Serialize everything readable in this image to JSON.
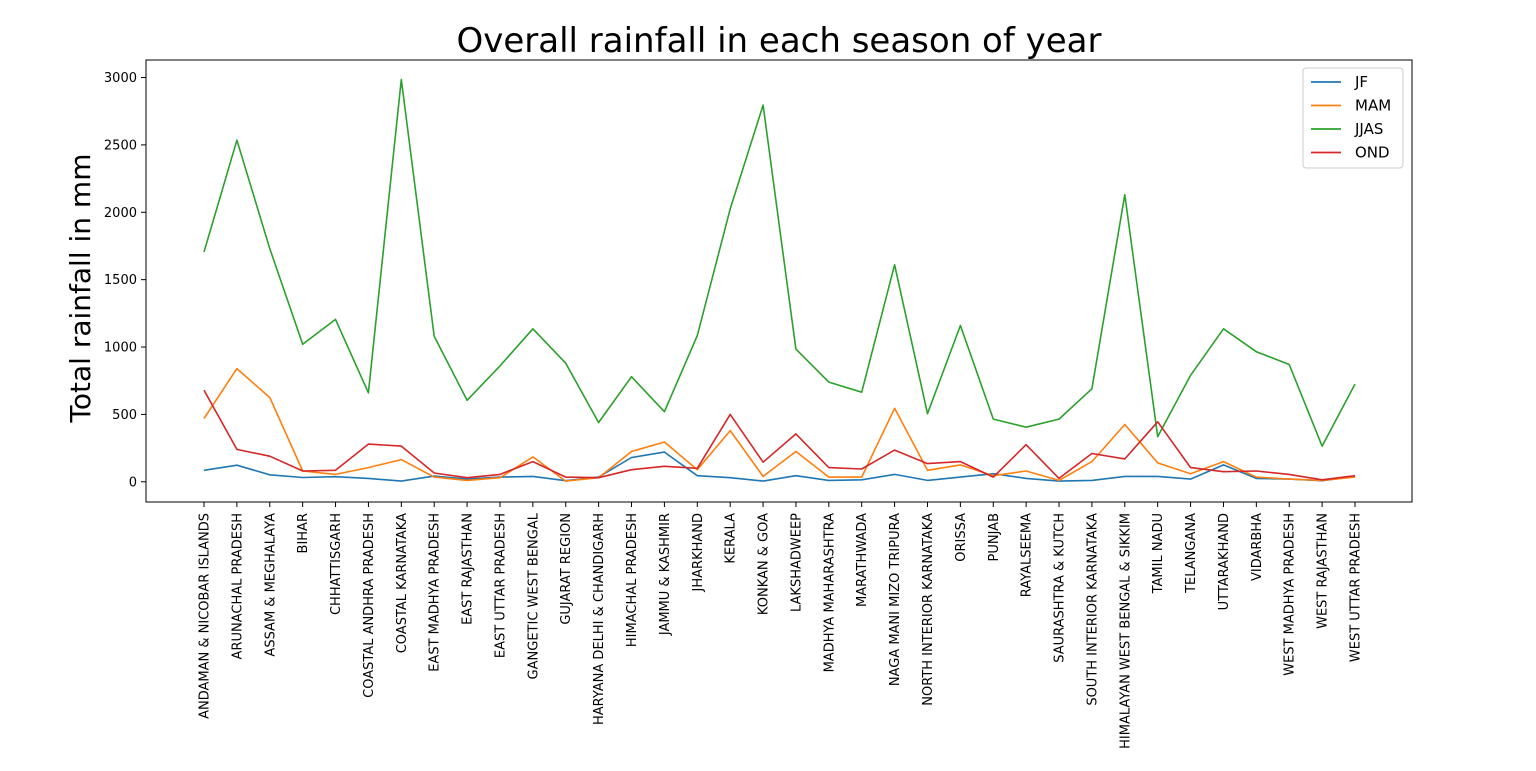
{
  "chart_data": {
    "type": "line",
    "title": "Overall rainfall in each season of year",
    "xlabel": "",
    "ylabel": "Total rainfall in mm",
    "ylim": [
      -150,
      3130
    ],
    "yticks": [
      0,
      500,
      1000,
      1500,
      2000,
      2500,
      3000
    ],
    "grid": false,
    "legend_position": "top-right",
    "categories": [
      "ANDAMAN & NICOBAR ISLANDS",
      "ARUNACHAL PRADESH",
      "ASSAM & MEGHALAYA",
      "BIHAR",
      "CHHATTISGARH",
      "COASTAL ANDHRA PRADESH",
      "COASTAL KARNATAKA",
      "EAST MADHYA PRADESH",
      "EAST RAJASTHAN",
      "EAST UTTAR PRADESH",
      "GANGETIC WEST BENGAL",
      "GUJARAT REGION",
      "HARYANA DELHI & CHANDIGARH",
      "HIMACHAL PRADESH",
      "JAMMU & KASHMIR",
      "JHARKHAND",
      "KERALA",
      "KONKAN & GOA",
      "LAKSHADWEEP",
      "MADHYA MAHARASHTRA",
      "MARATHWADA",
      "NAGA MANI MIZO TRIPURA",
      "NORTH INTERIOR KARNATAKA",
      "ORISSA",
      "PUNJAB",
      "RAYALSEEMA",
      "SAURASHTRA & KUTCH",
      "SOUTH INTERIOR KARNATAKA",
      "HIMALAYAN WEST BENGAL & SIKKIM",
      "TAMIL NADU",
      "TELANGANA",
      "UTTARAKHAND",
      "VIDARBHA",
      "WEST MADHYA PRADESH",
      "WEST RAJASTHAN",
      "WEST UTTAR PRADESH"
    ],
    "series": [
      {
        "name": "JF",
        "color": "#1f77b4",
        "values": [
          85,
          123,
          52,
          32,
          38,
          25,
          5,
          42,
          20,
          35,
          40,
          8,
          35,
          180,
          220,
          45,
          30,
          5,
          45,
          10,
          15,
          55,
          10,
          35,
          60,
          25,
          5,
          10,
          40,
          40,
          20,
          125,
          25,
          20,
          8,
          40
        ]
      },
      {
        "name": "MAM",
        "color": "#ff7f0e",
        "values": [
          470,
          840,
          625,
          80,
          55,
          105,
          165,
          35,
          10,
          30,
          185,
          5,
          30,
          225,
          295,
          90,
          380,
          40,
          225,
          35,
          35,
          545,
          85,
          125,
          45,
          80,
          10,
          150,
          425,
          140,
          60,
          150,
          35,
          20,
          10,
          35
        ]
      },
      {
        "name": "JJAS",
        "color": "#2ca02c",
        "values": [
          1705,
          2535,
          1730,
          1020,
          1205,
          660,
          2985,
          1080,
          605,
          860,
          1135,
          880,
          440,
          780,
          520,
          1085,
          2025,
          2795,
          985,
          740,
          665,
          1610,
          505,
          1160,
          465,
          405,
          465,
          690,
          2130,
          335,
          790,
          1135,
          965,
          870,
          265,
          725
        ]
      },
      {
        "name": "OND",
        "color": "#d62728",
        "values": [
          680,
          240,
          190,
          80,
          85,
          280,
          265,
          65,
          30,
          55,
          150,
          35,
          30,
          90,
          115,
          100,
          500,
          145,
          355,
          105,
          95,
          235,
          135,
          150,
          35,
          275,
          25,
          210,
          170,
          445,
          105,
          75,
          80,
          55,
          15,
          45
        ]
      }
    ]
  }
}
